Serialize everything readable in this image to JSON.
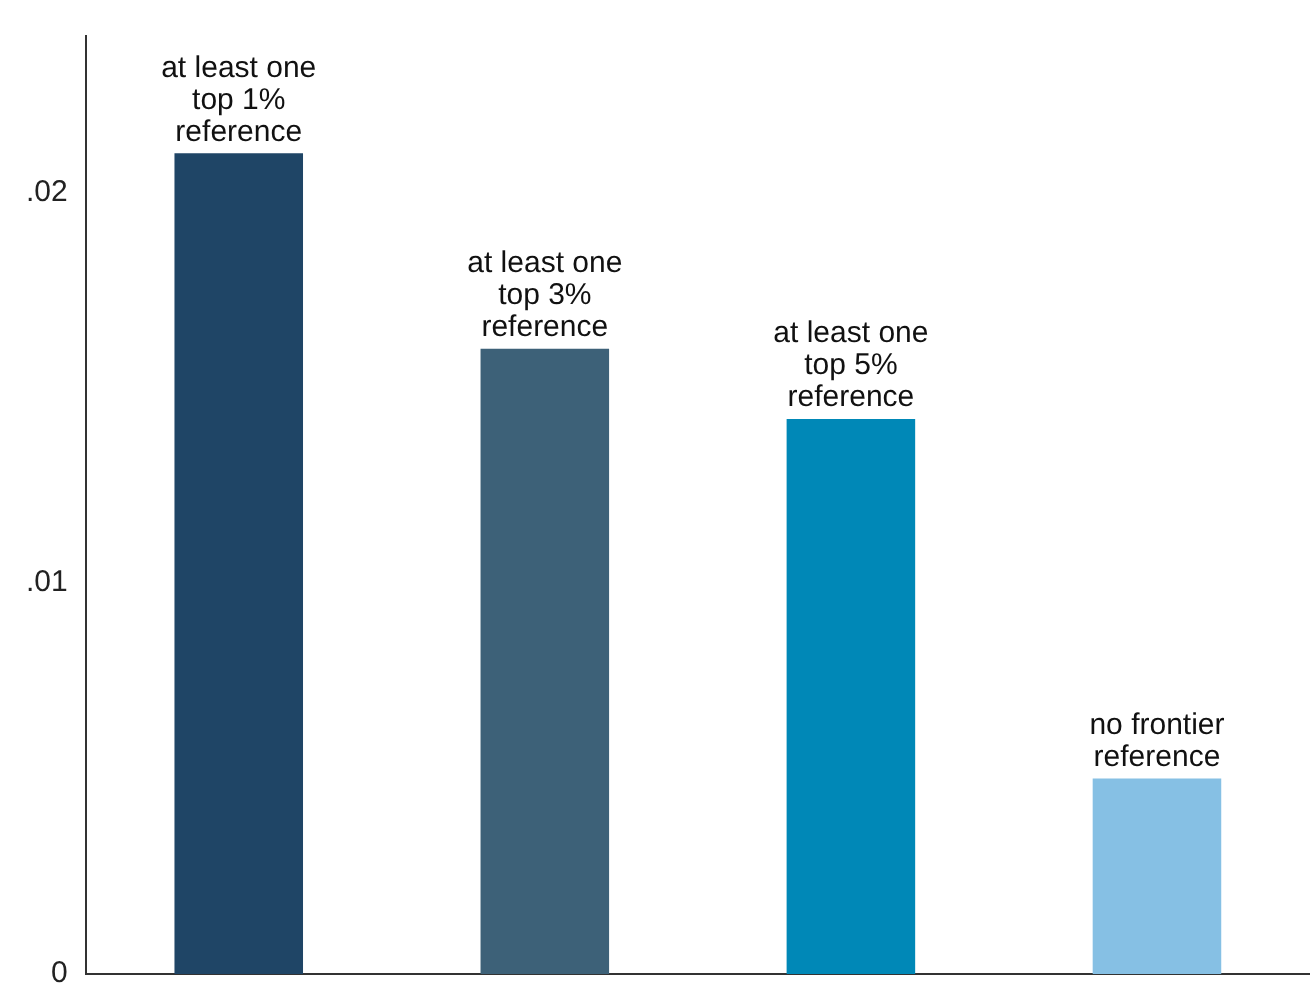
{
  "chart_data": {
    "type": "bar",
    "categories": [
      "at least one\ntop 1%\nreference",
      "at least one\ntop 3%\nreference",
      "at least one\ntop 5%\nreference",
      "no frontier\nreference"
    ],
    "values": [
      0.021,
      0.016,
      0.0142,
      0.005
    ],
    "colors": [
      "#1f4566",
      "#3d6178",
      "#0088b7",
      "#86c0e4"
    ],
    "ylim": [
      0,
      0.024
    ],
    "yticks": [
      {
        "value": 0,
        "label": "0"
      },
      {
        "value": 0.01,
        "label": ".01"
      },
      {
        "value": 0.02,
        "label": ".02"
      }
    ],
    "grid": false,
    "legend": false,
    "tick_labels": "y"
  }
}
